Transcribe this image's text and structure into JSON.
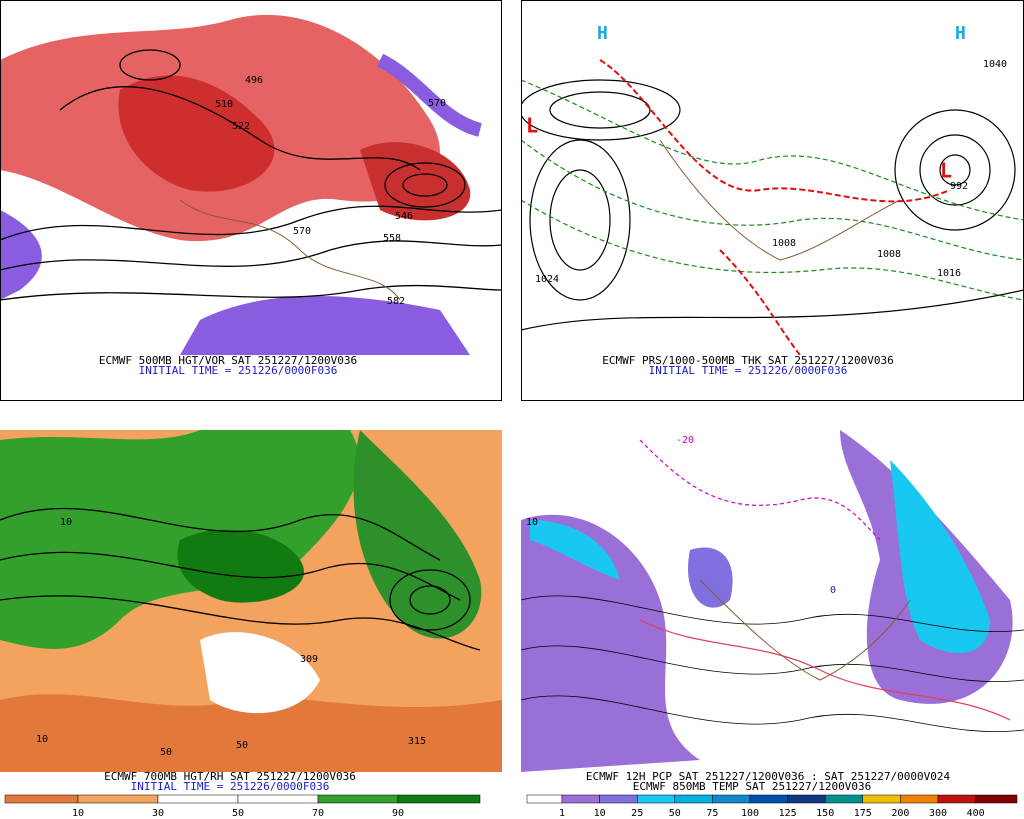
{
  "panels": [
    {
      "caption": "ECMWF 500MB HGT/VOR SAT 251227/1200V036",
      "initial": "INITIAL TIME = 251226/0000F036",
      "labels": [
        "496",
        "510",
        "522",
        "570",
        "546",
        "558",
        "582",
        "570"
      ]
    },
    {
      "caption": "ECMWF PRS/1000-500MB THK SAT 251227/1200V036",
      "initial": "INITIAL TIME = 251226/0000F036",
      "labels": [
        "1024",
        "1008",
        "1008",
        "1016",
        "1040",
        "992",
        "L",
        "L",
        "H",
        "H"
      ]
    },
    {
      "caption": "ECMWF 700MB HGT/RH SAT 251227/1200V036",
      "initial": "INITIAL TIME = 251226/0000F036",
      "labels": [
        "10",
        "50",
        "50",
        "309",
        "315",
        "10"
      ],
      "colorbar": {
        "labels": [
          10,
          30,
          50,
          70,
          90
        ],
        "colors": [
          "#e2793a",
          "#f3a35e",
          "#ffffff",
          "#ffffff",
          "#33a02c",
          "#117a11"
        ]
      }
    },
    {
      "caption": "ECMWF 12H PCP SAT 251227/1200V036 : SAT 251227/0000V024",
      "initial": "ECMWF 850MB TEMP SAT 251227/1200V036",
      "labels": [
        "-20",
        "0",
        "10"
      ],
      "colorbar": {
        "labels": [
          1,
          10,
          25,
          50,
          75,
          100,
          125,
          150,
          175,
          200,
          300,
          400
        ],
        "colors": [
          "#ffffff",
          "#9a6fd8",
          "#8070e0",
          "#18c8f0",
          "#00b0e0",
          "#1088d0",
          "#0050b0",
          "#103880",
          "#009090",
          "#f0c000",
          "#f08000",
          "#c01010",
          "#800000"
        ]
      }
    }
  ]
}
